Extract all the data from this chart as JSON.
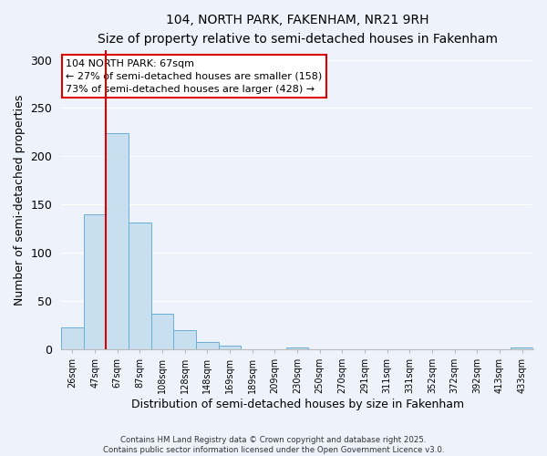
{
  "title": "104, NORTH PARK, FAKENHAM, NR21 9RH",
  "subtitle": "Size of property relative to semi-detached houses in Fakenham",
  "xlabel": "Distribution of semi-detached houses by size in Fakenham",
  "ylabel": "Number of semi-detached properties",
  "bar_labels": [
    "26sqm",
    "47sqm",
    "67sqm",
    "87sqm",
    "108sqm",
    "128sqm",
    "148sqm",
    "169sqm",
    "189sqm",
    "209sqm",
    "230sqm",
    "250sqm",
    "270sqm",
    "291sqm",
    "311sqm",
    "331sqm",
    "352sqm",
    "372sqm",
    "392sqm",
    "413sqm",
    "433sqm"
  ],
  "bar_values": [
    23,
    140,
    224,
    131,
    37,
    20,
    8,
    4,
    0,
    0,
    2,
    0,
    0,
    0,
    0,
    0,
    0,
    0,
    0,
    0,
    2
  ],
  "bar_color": "#c8dff0",
  "bar_edge_color": "#6baed6",
  "highlight_bar_index": 2,
  "highlight_color": "#dd0000",
  "annotation_title": "104 NORTH PARK: 67sqm",
  "annotation_line1": "← 27% of semi-detached houses are smaller (158)",
  "annotation_line2": "73% of semi-detached houses are larger (428) →",
  "vline_bar_index": 2,
  "ylim": [
    0,
    310
  ],
  "yticks": [
    0,
    50,
    100,
    150,
    200,
    250,
    300
  ],
  "footnote1": "Contains HM Land Registry data © Crown copyright and database right 2025.",
  "footnote2": "Contains public sector information licensed under the Open Government Licence v3.0.",
  "background_color": "#eef2fb",
  "grid_color": "#ffffff",
  "title_fontsize": 10,
  "subtitle_fontsize": 9
}
